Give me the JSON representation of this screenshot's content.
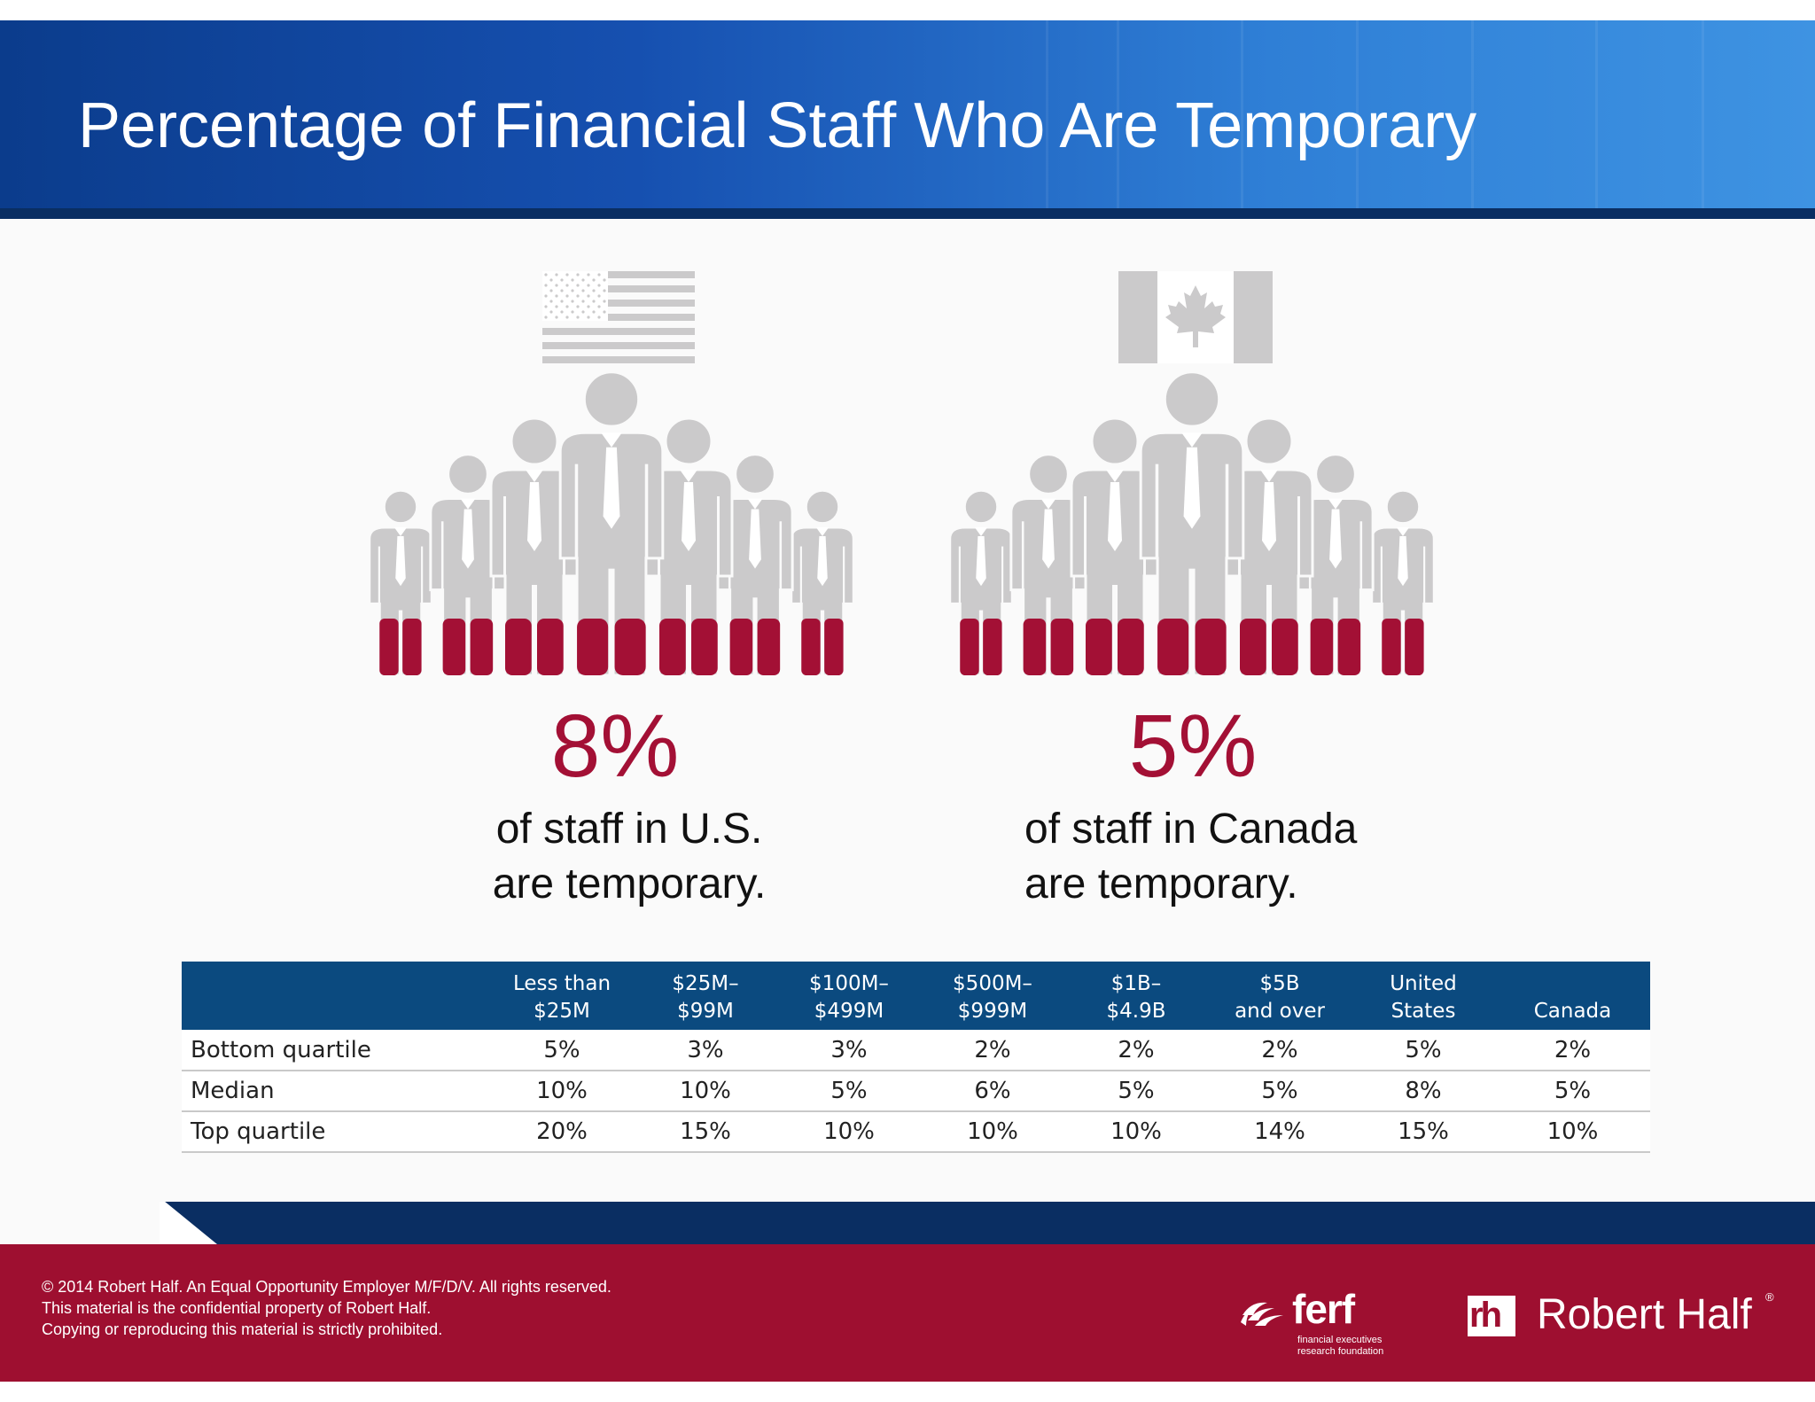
{
  "header": {
    "title": "Percentage of Financial Staff Who Are Temporary"
  },
  "us": {
    "flag_icon": "us-flag-icon",
    "crowd_icon": "people-crowd-icon",
    "percent": "8%",
    "caption_line1": "of staff in U.S.",
    "caption_line2": "are temporary."
  },
  "canada": {
    "flag_icon": "canada-flag-icon",
    "crowd_icon": "people-crowd-icon",
    "percent": "5%",
    "caption_line1": "of staff in Canada",
    "caption_line2": "are temporary."
  },
  "table": {
    "columns": [
      {
        "line1": "Less than",
        "line2": "$25M"
      },
      {
        "line1": "$25M–",
        "line2": "$99M"
      },
      {
        "line1": "$100M–",
        "line2": "$499M"
      },
      {
        "line1": "$500M–",
        "line2": "$999M"
      },
      {
        "line1": "$1B–",
        "line2": "$4.9B"
      },
      {
        "line1": "$5B",
        "line2": "and over"
      },
      {
        "line1": "United",
        "line2": "States"
      },
      {
        "line1": "",
        "line2": "Canada"
      }
    ],
    "rows": [
      {
        "label": "Bottom quartile",
        "values": [
          "5%",
          "3%",
          "3%",
          "2%",
          "2%",
          "2%",
          "5%",
          "2%"
        ]
      },
      {
        "label": "Median",
        "values": [
          "10%",
          "10%",
          "5%",
          "6%",
          "5%",
          "5%",
          "8%",
          "5%"
        ]
      },
      {
        "label": "Top quartile",
        "values": [
          "20%",
          "15%",
          "10%",
          "10%",
          "10%",
          "14%",
          "15%",
          "10%"
        ]
      }
    ]
  },
  "footer": {
    "copyright": "© 2014 Robert Half. An Equal Opportunity Employer M/F/D/V. All rights reserved.",
    "confidential": "This material is the confidential property of Robert Half.",
    "copying": "Copying or reproducing this material is strictly prohibited.",
    "ferf_name": "ferf",
    "ferf_tagline1": "financial executives",
    "ferf_tagline2": "research foundation",
    "rh_mark": "rh",
    "rh_name": "Robert Half",
    "rh_registered": "®"
  },
  "colors": {
    "header_blue": "#1650b0",
    "navy": "#0a2e62",
    "table_header": "#0b4a7f",
    "accent_red": "#a31035",
    "footer_red": "#9e0f30",
    "figure_gray": "#cbcacb"
  }
}
